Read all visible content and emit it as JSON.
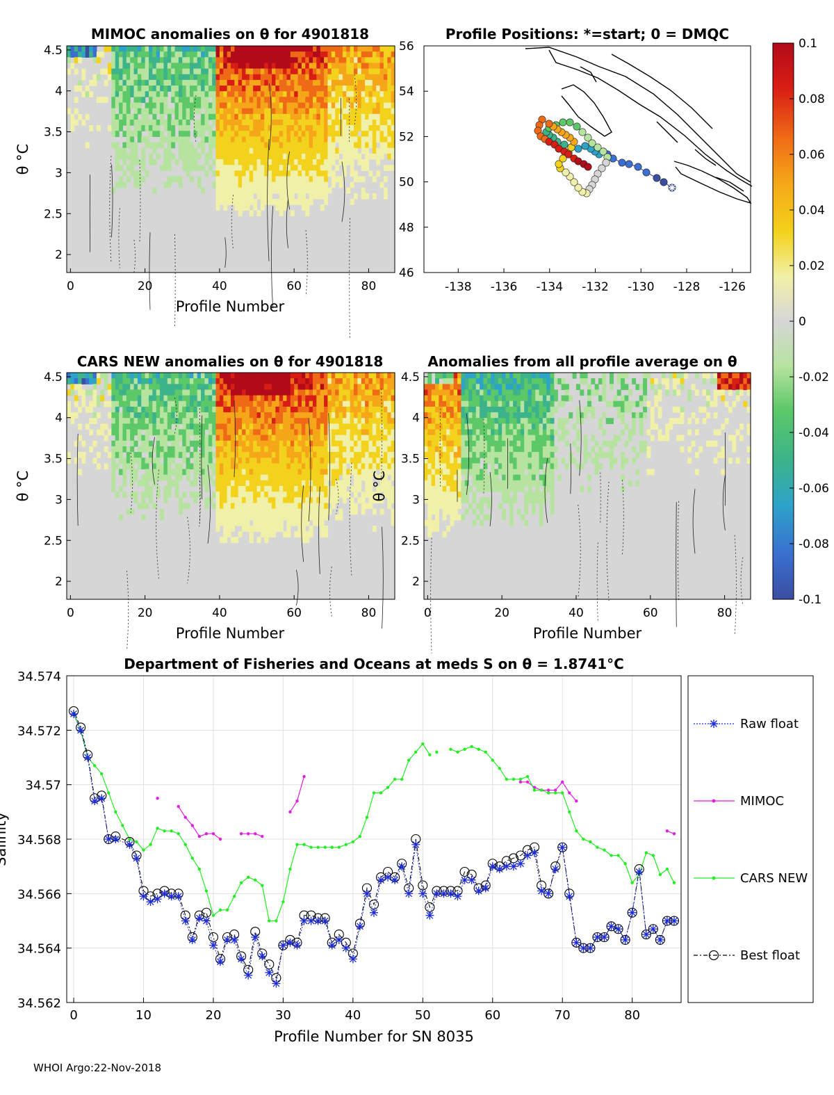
{
  "colors": {
    "gray": "#d4d4d4",
    "raw": "#1b2bd9",
    "mimoc": "#e41ee0",
    "cars": "#22ee22",
    "best": "#000000",
    "colormap": [
      "#3b4ea0",
      "#3a6fd0",
      "#2ea3c8",
      "#3cb38a",
      "#5cc868",
      "#b7e3a0",
      "#d6d6d6",
      "#f1f0a8",
      "#f2d21c",
      "#f5a619",
      "#ef6a17",
      "#d81d14",
      "#b10b1a"
    ]
  },
  "panel_tl": {
    "title": "MIMOC anomalies on θ  for 4901818",
    "ylabel": "θ °C",
    "xlabel": "Profile Number",
    "xticks": [
      "0",
      "20",
      "40",
      "60",
      "80"
    ],
    "yticks": [
      "2",
      "2.5",
      "3",
      "3.5",
      "4",
      "4.5"
    ]
  },
  "panel_tr": {
    "title": "Profile Positions: *=start; 0 = DMQC",
    "xticks": [
      "-138",
      "-136",
      "-134",
      "-132",
      "-130",
      "-128",
      "-126"
    ],
    "yticks": [
      "46",
      "48",
      "50",
      "52",
      "54",
      "56"
    ]
  },
  "panel_ml": {
    "title": "CARS NEW anomalies on θ for 4901818",
    "ylabel": "θ °C",
    "xlabel": "Profile Number",
    "xticks": [
      "0",
      "20",
      "40",
      "60",
      "80"
    ],
    "yticks": [
      "2",
      "2.5",
      "3",
      "3.5",
      "4",
      "4.5"
    ]
  },
  "panel_mr": {
    "title": "Anomalies from all profile average on θ",
    "ylabel": "θ °C",
    "xlabel": "Profile Number",
    "xticks": [
      "0",
      "20",
      "40",
      "60",
      "80"
    ],
    "yticks": [
      "2",
      "2.5",
      "3",
      "3.5",
      "4",
      "4.5"
    ]
  },
  "colorbar": {
    "labels": [
      "0.1",
      "0.08",
      "0.06",
      "0.04",
      "0.02",
      "0",
      "-0.02",
      "-0.04",
      "-0.06",
      "-0.08",
      "-0.1"
    ]
  },
  "chart_data": {
    "type": "line",
    "title": "Department of Fisheries and Oceans at meds S on θ = 1.8741",
    "title_unit": "°C",
    "xlabel": "Profile Number for SN 8035",
    "ylabel": "Salinity",
    "xlim": [
      -1,
      87
    ],
    "ylim": [
      34.562,
      34.574
    ],
    "xticks": [
      0,
      10,
      20,
      30,
      40,
      50,
      60,
      70,
      80
    ],
    "yticks": [
      "34.562",
      "34.564",
      "34.566",
      "34.568",
      "34.57",
      "34.572",
      "34.574"
    ],
    "grid": true,
    "legend_position": "right-outside",
    "series": [
      {
        "name": "Raw float",
        "style": "raw",
        "x": [
          0,
          1,
          2,
          3,
          4,
          5,
          6,
          8,
          9,
          10,
          11,
          12,
          13,
          14,
          15,
          16,
          17,
          18,
          19,
          20,
          21,
          22,
          23,
          24,
          25,
          26,
          27,
          28,
          29,
          30,
          31,
          32,
          33,
          34,
          35,
          36,
          37,
          38,
          39,
          40,
          41,
          42,
          43,
          44,
          45,
          46,
          47,
          48,
          49,
          50,
          51,
          52,
          53,
          54,
          55,
          56,
          57,
          58,
          59,
          60,
          61,
          62,
          63,
          64,
          65,
          66,
          67,
          68,
          69,
          70,
          71,
          72,
          73,
          74,
          75,
          76,
          77,
          78,
          79,
          80,
          81,
          82,
          83,
          84,
          85,
          86
        ],
        "values": [
          34.5726,
          34.572,
          34.571,
          34.5694,
          34.5695,
          34.568,
          34.568,
          34.5678,
          34.5673,
          34.5659,
          34.5657,
          34.5658,
          34.566,
          34.5659,
          34.5659,
          34.565,
          34.5643,
          34.5651,
          34.565,
          34.5641,
          34.5635,
          34.5643,
          34.5643,
          34.5636,
          34.563,
          34.5644,
          34.5637,
          34.5631,
          34.5627,
          34.5641,
          34.5642,
          34.5641,
          34.565,
          34.565,
          34.565,
          34.565,
          34.5641,
          34.5643,
          34.564,
          34.5636,
          34.5648,
          34.566,
          34.5653,
          34.5665,
          34.5666,
          34.5665,
          34.567,
          34.566,
          34.5678,
          34.566,
          34.5652,
          34.566,
          34.566,
          34.566,
          34.5659,
          34.5665,
          34.5665,
          34.5661,
          34.5662,
          34.567,
          34.5669,
          34.567,
          34.567,
          34.5671,
          34.5674,
          34.5675,
          34.5661,
          34.566,
          34.5669,
          34.5677,
          34.5659,
          34.5642,
          34.564,
          34.564,
          34.5644,
          34.5644,
          34.5648,
          34.5647,
          34.5643,
          34.5653,
          34.5668,
          34.5645,
          34.5647,
          34.5643,
          34.565,
          34.565
        ]
      },
      {
        "name": "MIMOC",
        "style": "mimoc",
        "segments": [
          {
            "x": [
              12
            ],
            "values": [
              34.5695
            ]
          },
          {
            "x": [
              15,
              16,
              17,
              18,
              19,
              20,
              21
            ],
            "values": [
              34.5692,
              34.5688,
              34.5685,
              34.5681,
              34.5682,
              34.5682,
              34.568
            ]
          },
          {
            "x": [
              24,
              25,
              26,
              27
            ],
            "values": [
              34.5682,
              34.5682,
              34.5682,
              34.5681
            ]
          },
          {
            "x": [
              31,
              32,
              33
            ],
            "values": [
              34.569,
              34.5694,
              34.5703
            ]
          },
          {
            "x": [
              64,
              65,
              66,
              67,
              68,
              69,
              70,
              71,
              72
            ],
            "values": [
              34.5701,
              34.5701,
              34.5699,
              34.5698,
              34.5698,
              34.5698,
              34.5701,
              34.5697,
              34.5694
            ]
          },
          {
            "x": [
              85,
              86
            ],
            "values": [
              34.5683,
              34.5682
            ]
          }
        ]
      },
      {
        "name": "CARS NEW",
        "style": "cars",
        "segments": [
          {
            "x": [
              0,
              1,
              2,
              3,
              4,
              5,
              6,
              7,
              8,
              9,
              10,
              11,
              12,
              13,
              14,
              15,
              16,
              17,
              18,
              19,
              20,
              21,
              22,
              23,
              24,
              25,
              26,
              27,
              28,
              29,
              30,
              31,
              32,
              33,
              34,
              35,
              36,
              37,
              38,
              39,
              40,
              41,
              42,
              43,
              44,
              45,
              46,
              47,
              48,
              49,
              50,
              51
            ],
            "values": [
              34.5726,
              34.572,
              34.571,
              34.5707,
              34.5704,
              34.5697,
              34.569,
              34.5685,
              34.568,
              34.5679,
              34.5676,
              34.5678,
              34.5684,
              34.5683,
              34.5683,
              34.5682,
              34.5678,
              34.5673,
              34.5669,
              34.5661,
              34.5652,
              34.5654,
              34.5654,
              34.5659,
              34.5664,
              34.5666,
              34.5665,
              34.5663,
              34.565,
              34.565,
              34.5657,
              34.5669,
              34.5678,
              34.5678,
              34.5677,
              34.5677,
              34.5677,
              34.5677,
              34.5677,
              34.5678,
              34.5679,
              34.5681,
              34.5688,
              34.5697,
              34.5697,
              34.5699,
              34.5702,
              34.5702,
              34.5709,
              34.5712,
              34.5715,
              34.5711
            ]
          },
          {
            "x": [
              52
            ],
            "values": [
              34.5712
            ]
          },
          {
            "x": [
              54,
              55,
              56,
              57,
              58,
              59,
              60,
              61,
              62,
              63,
              64,
              65,
              66,
              67,
              68,
              69,
              70,
              71,
              72,
              73,
              74,
              75,
              76,
              77,
              78,
              79,
              80,
              81,
              82,
              83,
              84,
              85,
              86
            ],
            "values": [
              34.5713,
              34.5712,
              34.5713,
              34.5714,
              34.5713,
              34.5712,
              34.5709,
              34.5706,
              34.5702,
              34.5702,
              34.5702,
              34.5703,
              34.5698,
              34.5698,
              34.5697,
              34.5697,
              34.5697,
              34.569,
              34.5683,
              34.568,
              34.5679,
              34.5677,
              34.5676,
              34.5674,
              34.5674,
              34.5671,
              34.5664,
              34.5667,
              34.5675,
              34.5674,
              34.5667,
              34.5669,
              34.5664
            ]
          }
        ]
      },
      {
        "name": "Best float",
        "style": "best",
        "x": [
          0,
          1,
          2,
          3,
          4,
          5,
          6,
          8,
          9,
          10,
          11,
          12,
          13,
          14,
          15,
          16,
          17,
          18,
          19,
          20,
          21,
          22,
          23,
          24,
          25,
          26,
          27,
          28,
          29,
          30,
          31,
          32,
          33,
          34,
          35,
          36,
          37,
          38,
          39,
          40,
          41,
          42,
          43,
          44,
          45,
          46,
          47,
          48,
          49,
          50,
          51,
          52,
          53,
          54,
          55,
          56,
          57,
          58,
          59,
          60,
          61,
          62,
          63,
          64,
          65,
          66,
          67,
          68,
          69,
          70,
          71,
          72,
          73,
          74,
          75,
          76,
          77,
          78,
          79,
          80,
          81,
          82,
          83,
          84,
          85,
          86
        ],
        "values": [
          34.5727,
          34.5721,
          34.5711,
          34.5695,
          34.5696,
          34.568,
          34.5681,
          34.5679,
          34.5674,
          34.5661,
          34.5659,
          34.566,
          34.5661,
          34.566,
          34.566,
          34.5652,
          34.5644,
          34.5652,
          34.5653,
          34.5644,
          34.5636,
          34.5644,
          34.5645,
          34.5637,
          34.5632,
          34.5646,
          34.5638,
          34.5634,
          34.5629,
          34.5641,
          34.5643,
          34.5642,
          34.5652,
          34.5652,
          34.5651,
          34.5651,
          34.5642,
          34.5645,
          34.5642,
          34.5638,
          34.5649,
          34.5662,
          34.5656,
          34.5666,
          34.5668,
          34.5666,
          34.5671,
          34.5662,
          34.568,
          34.5663,
          34.5655,
          34.5661,
          34.5661,
          34.5661,
          34.5661,
          34.5668,
          34.5667,
          34.5662,
          34.5663,
          34.5671,
          34.567,
          34.5672,
          34.5673,
          34.5674,
          34.5676,
          34.5677,
          34.5663,
          34.566,
          34.567,
          34.5677,
          34.566,
          34.5642,
          34.564,
          34.564,
          34.5644,
          34.5644,
          34.5648,
          34.5647,
          34.5643,
          34.5653,
          34.5669,
          34.5645,
          34.5647,
          34.5643,
          34.565,
          34.565
        ]
      }
    ]
  },
  "legend": {
    "raw": "Raw float",
    "mimoc": "MIMOC",
    "cars": "CARS NEW",
    "best": "Best float"
  },
  "footer": "WHOI Argo:22-Nov-2018"
}
